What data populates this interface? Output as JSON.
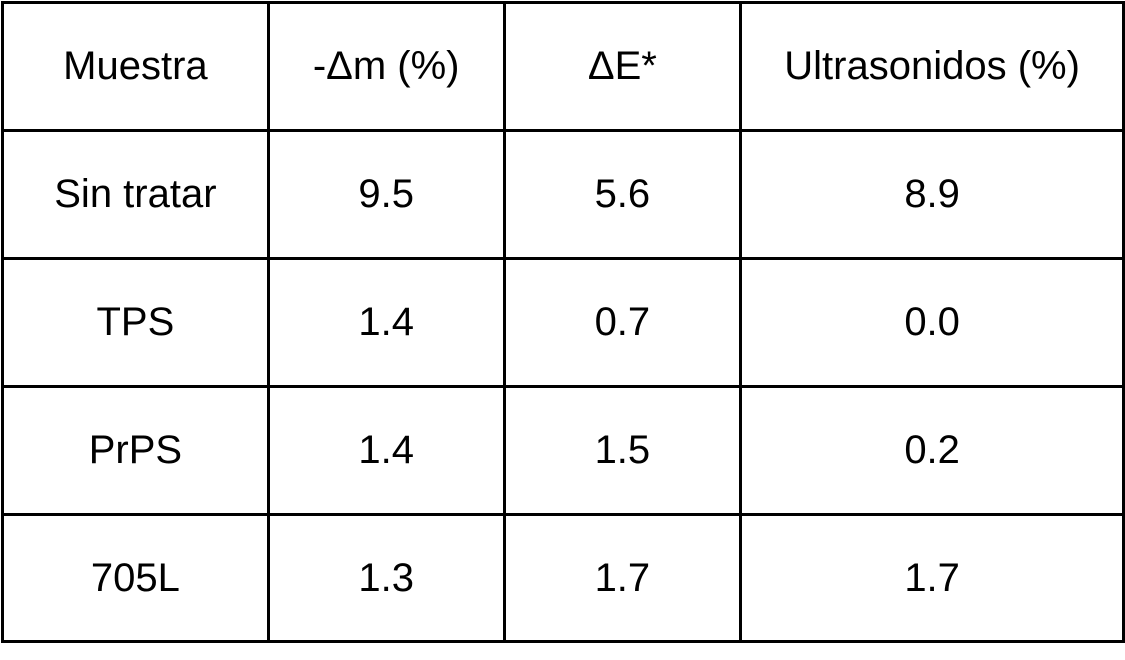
{
  "table": {
    "header": [
      "Muestra",
      "-Δm (%)",
      "ΔE*",
      "Ultrasonidos (%)"
    ],
    "rows": [
      [
        "Sin tratar",
        "9.5",
        "5.6",
        "8.9"
      ],
      [
        "TPS",
        "1.4",
        "0.7",
        "0.0"
      ],
      [
        "PrPS",
        "1.4",
        "1.5",
        "0.2"
      ],
      [
        "705L",
        "1.3",
        "1.7",
        "1.7"
      ]
    ]
  }
}
